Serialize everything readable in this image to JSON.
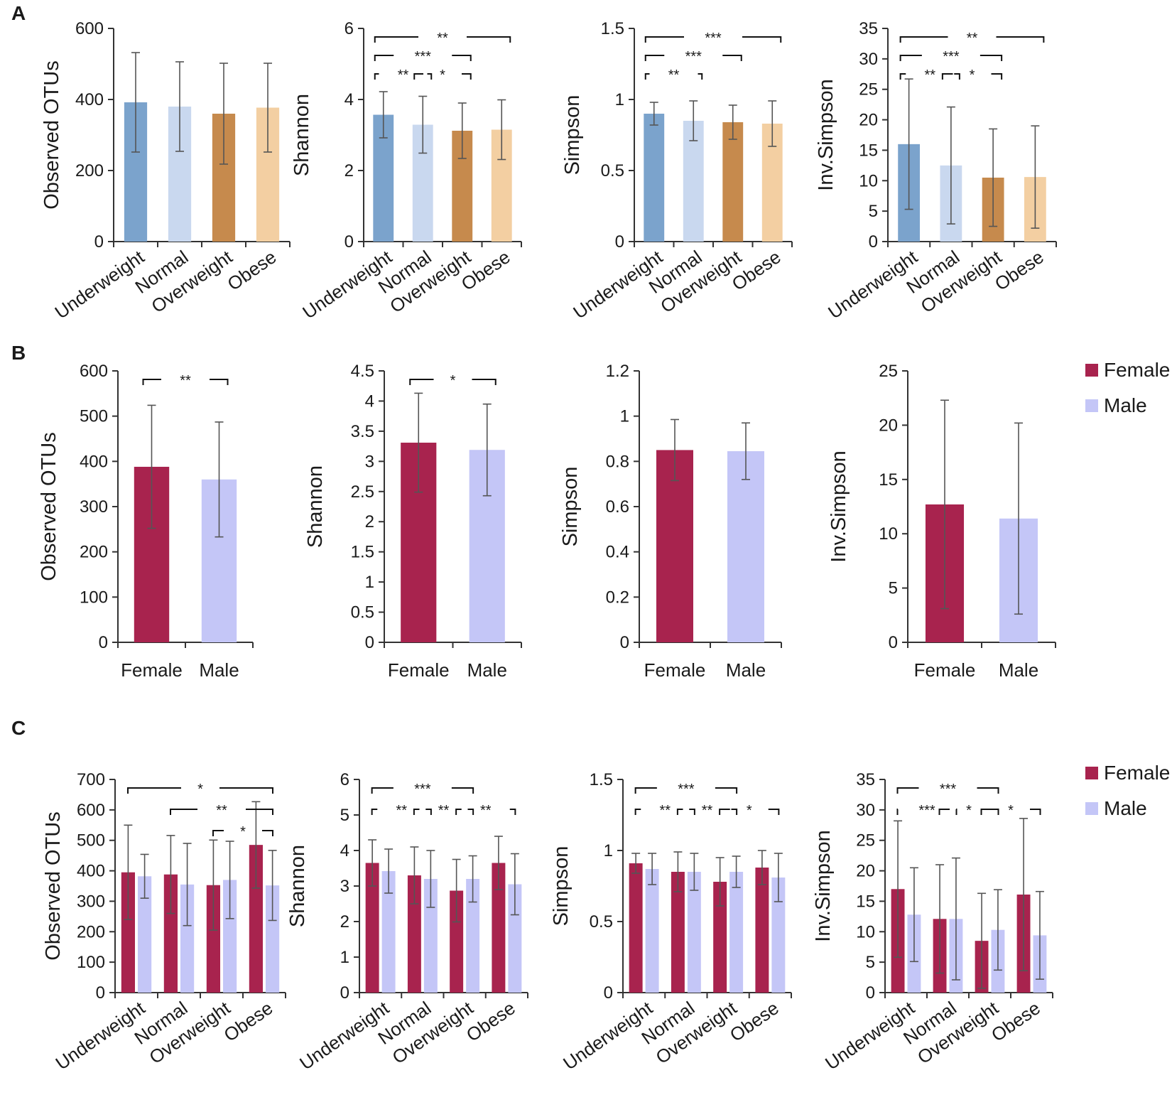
{
  "figure": {
    "panels": [
      {
        "label": "A"
      },
      {
        "label": "B"
      },
      {
        "label": "C"
      }
    ],
    "colors": {
      "underweight": "#7ba3cc",
      "normal": "#c9d8ef",
      "overweight": "#c68a4d",
      "obese": "#f3cfa2",
      "female": "#a8234e",
      "male": "#c4c6f7",
      "axis": "#333333",
      "error_bar": "#555555"
    },
    "legends": [
      {
        "panel": "B",
        "items": [
          {
            "label": "Female",
            "color": "#a8234e"
          },
          {
            "label": "Male",
            "color": "#c4c6f7"
          }
        ]
      },
      {
        "panel": "C",
        "items": [
          {
            "label": "Female",
            "color": "#a8234e"
          },
          {
            "label": "Male",
            "color": "#c4c6f7"
          }
        ]
      }
    ]
  },
  "chart_data": [
    {
      "panel": "A",
      "type": "bar",
      "ylabel": "Observed OTUs",
      "ylim": [
        0,
        600
      ],
      "yticks": [
        0,
        200,
        400,
        600
      ],
      "categories": [
        "Underweight",
        "Normal",
        "Overweight",
        "Obese"
      ],
      "series": [
        {
          "name": "",
          "values": [
            392,
            380,
            360,
            377
          ],
          "errors": [
            140,
            126,
            142,
            125
          ]
        }
      ],
      "significance": []
    },
    {
      "panel": "A",
      "type": "bar",
      "ylabel": "Shannon",
      "ylim": [
        0,
        6
      ],
      "yticks": [
        0,
        2,
        4,
        6
      ],
      "categories": [
        "Underweight",
        "Normal",
        "Overweight",
        "Obese"
      ],
      "series": [
        {
          "name": "",
          "values": [
            3.57,
            3.29,
            3.12,
            3.15
          ],
          "errors": [
            0.65,
            0.8,
            0.78,
            0.84
          ]
        }
      ],
      "significance": [
        {
          "from": 0,
          "to": 3,
          "text": "**"
        },
        {
          "from": 0,
          "to": 2,
          "text": "***"
        },
        {
          "from": 0,
          "to": 1,
          "text": "**"
        },
        {
          "from": 1,
          "to": 2,
          "text": "*"
        }
      ]
    },
    {
      "panel": "A",
      "type": "bar",
      "ylabel": "Simpson",
      "ylim": [
        0,
        1.5
      ],
      "yticks": [
        0,
        0.5,
        1,
        1.5
      ],
      "categories": [
        "Underweight",
        "Normal",
        "Overweight",
        "Obese"
      ],
      "series": [
        {
          "name": "",
          "values": [
            0.9,
            0.85,
            0.84,
            0.83
          ],
          "errors": [
            0.08,
            0.14,
            0.12,
            0.16
          ]
        }
      ],
      "significance": [
        {
          "from": 0,
          "to": 3,
          "text": "***"
        },
        {
          "from": 0,
          "to": 2,
          "text": "***"
        },
        {
          "from": 0,
          "to": 1,
          "text": "**"
        }
      ]
    },
    {
      "panel": "A",
      "type": "bar",
      "ylabel": "Inv.Simpson",
      "ylim": [
        0,
        35
      ],
      "yticks": [
        0,
        5,
        10,
        15,
        20,
        25,
        30,
        35
      ],
      "categories": [
        "Underweight",
        "Normal",
        "Overweight",
        "Obese"
      ],
      "series": [
        {
          "name": "",
          "values": [
            16,
            12.5,
            10.5,
            10.6
          ],
          "errors": [
            10.7,
            9.6,
            8.0,
            8.4
          ]
        }
      ],
      "significance": [
        {
          "from": 0,
          "to": 3,
          "text": "**"
        },
        {
          "from": 0,
          "to": 2,
          "text": "***"
        },
        {
          "from": 0,
          "to": 1,
          "text": "**"
        },
        {
          "from": 1,
          "to": 2,
          "text": "*"
        }
      ]
    },
    {
      "panel": "B",
      "type": "bar",
      "ylabel": "Observed OTUs",
      "ylim": [
        0,
        600
      ],
      "yticks": [
        0,
        100,
        200,
        300,
        400,
        500,
        600
      ],
      "categories": [
        "Female",
        "Male"
      ],
      "series": [
        {
          "name": "",
          "values": [
            388,
            360
          ],
          "errors": [
            136,
            127
          ]
        }
      ],
      "significance": [
        {
          "from": 0,
          "to": 1,
          "text": "**"
        }
      ]
    },
    {
      "panel": "B",
      "type": "bar",
      "ylabel": "Shannon",
      "ylim": [
        0,
        4.5
      ],
      "yticks": [
        0,
        0.5,
        1,
        1.5,
        2,
        2.5,
        3,
        3.5,
        4,
        4.5
      ],
      "categories": [
        "Female",
        "Male"
      ],
      "series": [
        {
          "name": "",
          "values": [
            3.31,
            3.19
          ],
          "errors": [
            0.82,
            0.76
          ]
        }
      ],
      "significance": [
        {
          "from": 0,
          "to": 1,
          "text": "*"
        }
      ]
    },
    {
      "panel": "B",
      "type": "bar",
      "ylabel": "Simpson",
      "ylim": [
        0,
        1.2
      ],
      "yticks": [
        0,
        0.2,
        0.4,
        0.6,
        0.8,
        1,
        1.2
      ],
      "categories": [
        "Female",
        "Male"
      ],
      "series": [
        {
          "name": "",
          "values": [
            0.85,
            0.845
          ],
          "errors": [
            0.135,
            0.125
          ]
        }
      ],
      "significance": []
    },
    {
      "panel": "B",
      "type": "bar",
      "ylabel": "Inv.Simpson",
      "ylim": [
        0,
        25
      ],
      "yticks": [
        0,
        5,
        10,
        15,
        20,
        25
      ],
      "categories": [
        "Female",
        "Male"
      ],
      "series": [
        {
          "name": "",
          "values": [
            12.7,
            11.4
          ],
          "errors": [
            9.6,
            8.8
          ]
        }
      ],
      "significance": []
    },
    {
      "panel": "C",
      "type": "bar",
      "ylabel": "Observed OTUs",
      "ylim": [
        0,
        700
      ],
      "yticks": [
        0,
        100,
        200,
        300,
        400,
        500,
        600,
        700
      ],
      "categories": [
        "Underweight",
        "Normal",
        "Overweight",
        "Obese"
      ],
      "series": [
        {
          "name": "Female",
          "values": [
            395,
            388,
            353,
            485
          ],
          "errors": [
            155,
            128,
            148,
            142
          ]
        },
        {
          "name": "Male",
          "values": [
            382,
            355,
            370,
            352
          ],
          "errors": [
            72,
            135,
            127,
            115
          ]
        }
      ],
      "significance": [
        {
          "from": 0,
          "to": 3,
          "text": "*"
        },
        {
          "from": 1,
          "to": 3,
          "text": "**"
        },
        {
          "from": 2,
          "to": 3,
          "text": "*"
        }
      ]
    },
    {
      "panel": "C",
      "type": "bar",
      "ylabel": "Shannon",
      "ylim": [
        0,
        6
      ],
      "yticks": [
        0,
        1,
        2,
        3,
        4,
        5,
        6
      ],
      "categories": [
        "Underweight",
        "Normal",
        "Overweight",
        "Obese"
      ],
      "series": [
        {
          "name": "Female",
          "values": [
            3.65,
            3.3,
            2.87,
            3.65
          ],
          "errors": [
            0.65,
            0.8,
            0.88,
            0.75
          ]
        },
        {
          "name": "Male",
          "values": [
            3.42,
            3.2,
            3.2,
            3.05
          ],
          "errors": [
            0.62,
            0.8,
            0.65,
            0.86
          ]
        }
      ],
      "significance": [
        {
          "from": 0,
          "to": 2,
          "text": "***"
        },
        {
          "from": 0,
          "to": 1,
          "text": "**"
        },
        {
          "from": 1,
          "to": 2,
          "text": "**"
        },
        {
          "from": 2,
          "to": 3,
          "text": "**"
        }
      ]
    },
    {
      "panel": "C",
      "type": "bar",
      "ylabel": "Simpson",
      "ylim": [
        0,
        1.5
      ],
      "yticks": [
        0,
        0.5,
        1,
        1.5
      ],
      "categories": [
        "Underweight",
        "Normal",
        "Overweight",
        "Obese"
      ],
      "series": [
        {
          "name": "Female",
          "values": [
            0.91,
            0.85,
            0.78,
            0.88
          ],
          "errors": [
            0.07,
            0.14,
            0.17,
            0.12
          ]
        },
        {
          "name": "Male",
          "values": [
            0.87,
            0.85,
            0.85,
            0.81
          ],
          "errors": [
            0.11,
            0.13,
            0.11,
            0.17
          ]
        }
      ],
      "significance": [
        {
          "from": 0,
          "to": 2,
          "text": "***"
        },
        {
          "from": 0,
          "to": 1,
          "text": "**"
        },
        {
          "from": 1,
          "to": 2,
          "text": "**"
        },
        {
          "from": 2,
          "to": 3,
          "text": "*"
        }
      ]
    },
    {
      "panel": "C",
      "type": "bar",
      "ylabel": "Inv.Simpson",
      "ylim": [
        0,
        35
      ],
      "yticks": [
        0,
        5,
        10,
        15,
        20,
        25,
        30,
        35
      ],
      "categories": [
        "Underweight",
        "Normal",
        "Overweight",
        "Obese"
      ],
      "series": [
        {
          "name": "Female",
          "values": [
            17,
            12.1,
            8.5,
            16.1
          ],
          "errors": [
            11.2,
            8.9,
            7.8,
            12.5
          ]
        },
        {
          "name": "Male",
          "values": [
            12.8,
            12.1,
            10.3,
            9.4
          ],
          "errors": [
            7.7,
            10.0,
            6.6,
            7.2
          ]
        }
      ],
      "significance": [
        {
          "from": 0,
          "to": 2,
          "text": "***"
        },
        {
          "from": 0,
          "to": 1,
          "text": "***"
        },
        {
          "from": 1,
          "to": 2,
          "text": "*"
        },
        {
          "from": 2,
          "to": 3,
          "text": "*"
        }
      ]
    }
  ]
}
